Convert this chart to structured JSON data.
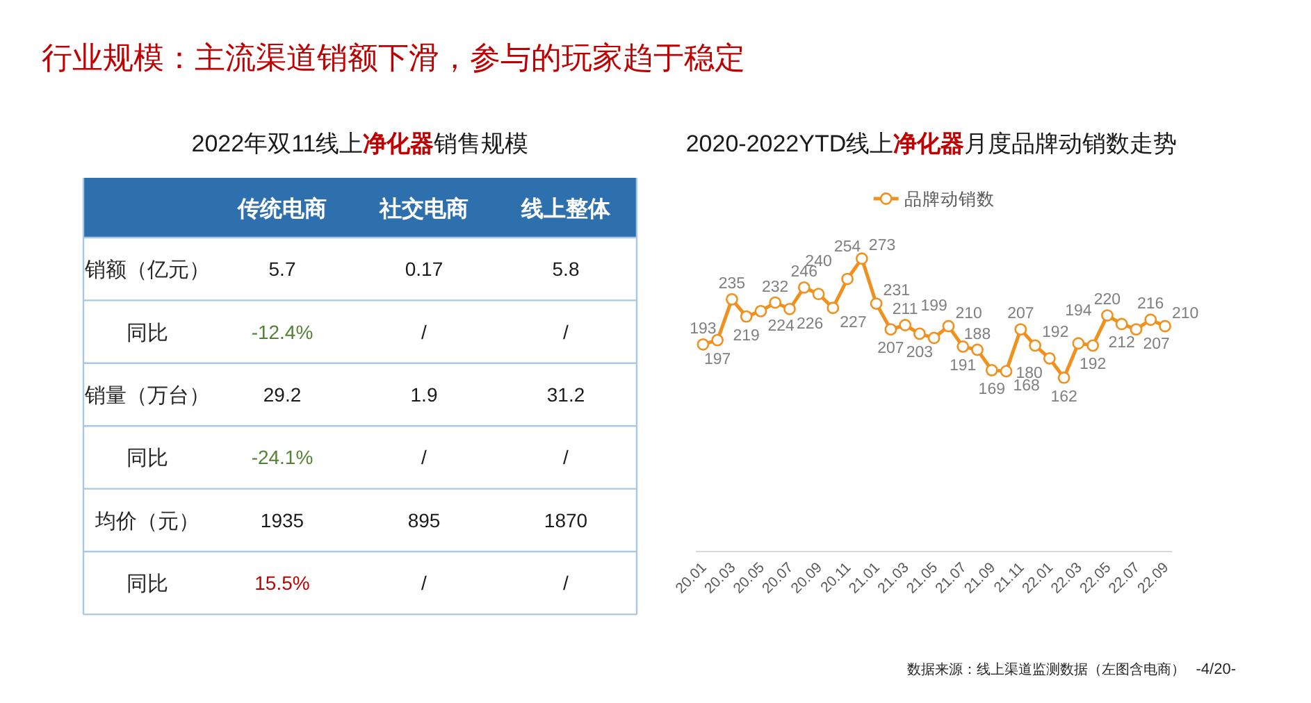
{
  "chart_data": [
    {
      "type": "other",
      "title": "2022年双11线上**净化器**销售规模",
      "categories": [
        "传统电商",
        "社交电商",
        "线上整体"
      ],
      "y_categories": [
        "销额（亿元）",
        "同比",
        "销量（万台）",
        "同比",
        "均价（元）",
        "同比"
      ],
      "cell_labels": [
        [
          "5.7",
          "0.17",
          "5.8"
        ],
        [
          "-12.4%",
          "/",
          "/"
        ],
        [
          "29.2",
          "1.9",
          "31.2"
        ],
        [
          "-24.1%",
          "/",
          "/"
        ],
        [
          "1935",
          "895",
          "1870"
        ],
        [
          "15.5%",
          "/",
          "/"
        ]
      ],
      "colors": [
        [
          null,
          null,
          null
        ],
        [
          "#548235",
          null,
          null
        ],
        [
          null,
          null,
          null
        ],
        [
          "#548235",
          null,
          null
        ],
        [
          null,
          null,
          null
        ],
        [
          "#c00000",
          null,
          null
        ]
      ],
      "annotations": [
        "行业规模：主流渠道销额下滑，参与的玩家趋于稳定"
      ]
    },
    {
      "type": "line",
      "title": "2020-2022YTD线上**净化器**月度品牌动销数走势",
      "categories": [
        "20.01",
        null,
        "20.03",
        null,
        "20.05",
        null,
        "20.07",
        null,
        "20.09",
        null,
        "20.11",
        null,
        "21.01",
        null,
        "21.03",
        null,
        "21.05",
        null,
        "21.07",
        null,
        "21.09",
        null,
        "21.11",
        null,
        "22.01",
        null,
        "22.03",
        null,
        "22.05",
        null,
        "22.07",
        null,
        "22.09"
      ],
      "series": [
        {
          "name": "品牌动销数",
          "color": "#f0901e",
          "values": [
            193,
            197,
            235,
            219,
            224,
            232,
            226,
            246,
            240,
            227,
            254,
            273,
            231,
            207,
            211,
            203,
            199,
            210,
            191,
            188,
            169,
            168,
            207,
            192,
            180,
            162,
            194,
            192,
            220,
            212,
            207,
            216,
            210
          ]
        }
      ],
      "tick_labels": "x",
      "data_labels": true,
      "marker": "circle",
      "legend": "top",
      "annotations": [
        "数据来源：线上渠道监测数据（左图含电商）",
        "-4/20-"
      ]
    }
  ]
}
